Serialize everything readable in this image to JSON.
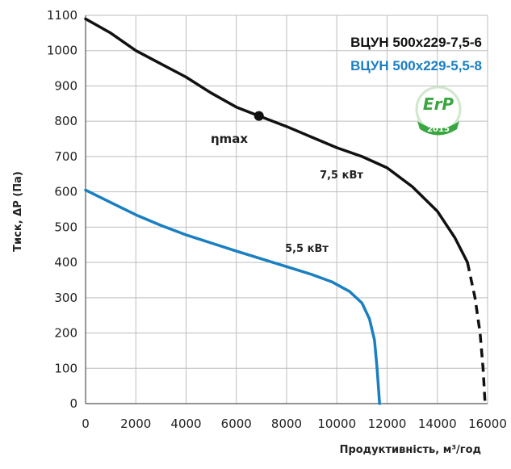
{
  "chart_data": {
    "type": "line",
    "xlabel": "Продуктивність, м³/год",
    "ylabel": "Тиск, ΔP (Па)",
    "xlim": [
      0,
      16000
    ],
    "ylim": [
      0,
      1100
    ],
    "x_ticks": [
      "0",
      "2000",
      "4000",
      "6000",
      "8000",
      "10000",
      "12000",
      "14000",
      "16000"
    ],
    "y_ticks": [
      "0",
      "100",
      "200",
      "300",
      "400",
      "500",
      "600",
      "700",
      "800",
      "900",
      "1000",
      "1100"
    ],
    "grid": true,
    "legend_position": "top-right",
    "series": [
      {
        "name": "ВЦУН 500x229-7,5-6",
        "color": "#111111",
        "solid": [
          [
            0,
            1090
          ],
          [
            1000,
            1050
          ],
          [
            2000,
            1000
          ],
          [
            2800,
            970
          ],
          [
            4000,
            925
          ],
          [
            5000,
            880
          ],
          [
            6000,
            840
          ],
          [
            6900,
            815
          ],
          [
            8000,
            785
          ],
          [
            9000,
            755
          ],
          [
            10000,
            725
          ],
          [
            11000,
            700
          ],
          [
            12000,
            668
          ],
          [
            13000,
            615
          ],
          [
            14000,
            545
          ],
          [
            14700,
            470
          ],
          [
            15200,
            400
          ]
        ],
        "dashed": [
          [
            15200,
            400
          ],
          [
            15500,
            300
          ],
          [
            15700,
            200
          ],
          [
            15820,
            100
          ],
          [
            15900,
            0
          ]
        ],
        "power_label": "7,5 кВт"
      },
      {
        "name": "ВЦУН 500x229-5,5-8",
        "color": "#1a7fc1",
        "solid": [
          [
            0,
            605
          ],
          [
            1000,
            570
          ],
          [
            2000,
            535
          ],
          [
            3000,
            505
          ],
          [
            4000,
            478
          ],
          [
            5000,
            455
          ],
          [
            6000,
            432
          ],
          [
            7000,
            410
          ],
          [
            8000,
            388
          ],
          [
            9000,
            366
          ],
          [
            9800,
            345
          ],
          [
            10500,
            318
          ],
          [
            11000,
            285
          ],
          [
            11300,
            240
          ],
          [
            11500,
            180
          ],
          [
            11600,
            100
          ],
          [
            11700,
            0
          ]
        ],
        "power_label": "5,5 кВт"
      }
    ],
    "eta_max_point": {
      "x": 6900,
      "y": 815,
      "label": "ηmax"
    },
    "badge": {
      "text": "ErP",
      "year": "2015",
      "color": "#3aa640"
    }
  }
}
